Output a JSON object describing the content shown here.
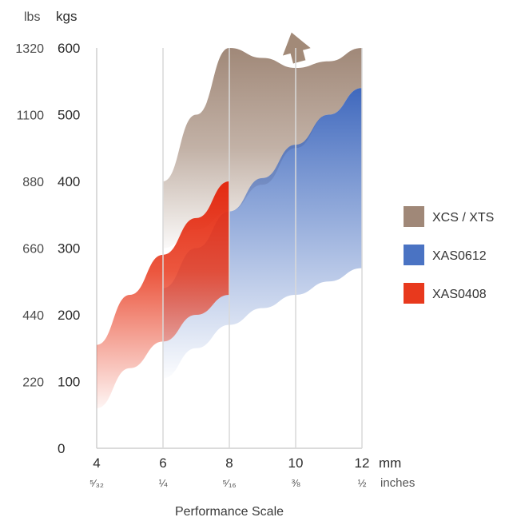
{
  "chart_data": {
    "type": "area",
    "title": "",
    "xlabel": "Performance Scale",
    "ylabel": "",
    "y_units": {
      "left": "lbs",
      "right": "kgs"
    },
    "x_units": {
      "primary": "mm",
      "secondary": "inches"
    },
    "xlim": [
      4,
      12
    ],
    "ylim": [
      0,
      600
    ],
    "x_ticks": [
      {
        "mm": "4",
        "inch": "⁵⁄₃₂"
      },
      {
        "mm": "6",
        "inch": "¼"
      },
      {
        "mm": "8",
        "inch": "⁵⁄₁₆"
      },
      {
        "mm": "10",
        "inch": "⅜"
      },
      {
        "mm": "12",
        "inch": "½"
      }
    ],
    "y_ticks": [
      {
        "kgs": "600",
        "lbs": "1320"
      },
      {
        "kgs": "500",
        "lbs": "1100"
      },
      {
        "kgs": "400",
        "lbs": "880"
      },
      {
        "kgs": "300",
        "lbs": "660"
      },
      {
        "kgs": "200",
        "lbs": "440"
      },
      {
        "kgs": "100",
        "lbs": "220"
      },
      {
        "kgs": "0",
        "lbs": ""
      }
    ],
    "series": [
      {
        "name": "XCS / XTS",
        "color": "#a89080",
        "x": [
          6,
          7,
          8,
          9,
          10,
          11,
          12
        ],
        "upper": [
          400,
          500,
          600,
          585,
          570,
          580,
          600
        ],
        "lower": [
          300,
          328,
          355,
          395,
          450,
          500,
          540
        ],
        "note_arrow": "up"
      },
      {
        "name": "XAS0612",
        "color": "#4f76c4",
        "x": [
          6,
          7,
          8,
          9,
          10,
          11,
          12
        ],
        "upper": [
          240,
          300,
          355,
          405,
          455,
          500,
          540
        ],
        "lower": [
          105,
          150,
          185,
          210,
          230,
          250,
          270
        ]
      },
      {
        "name": "XAS0408",
        "color": "#e8391d",
        "x": [
          4,
          5,
          6,
          7,
          8
        ],
        "upper": [
          155,
          230,
          290,
          345,
          400
        ],
        "lower": [
          60,
          120,
          160,
          200,
          230
        ]
      }
    ],
    "legend_position": "right"
  }
}
